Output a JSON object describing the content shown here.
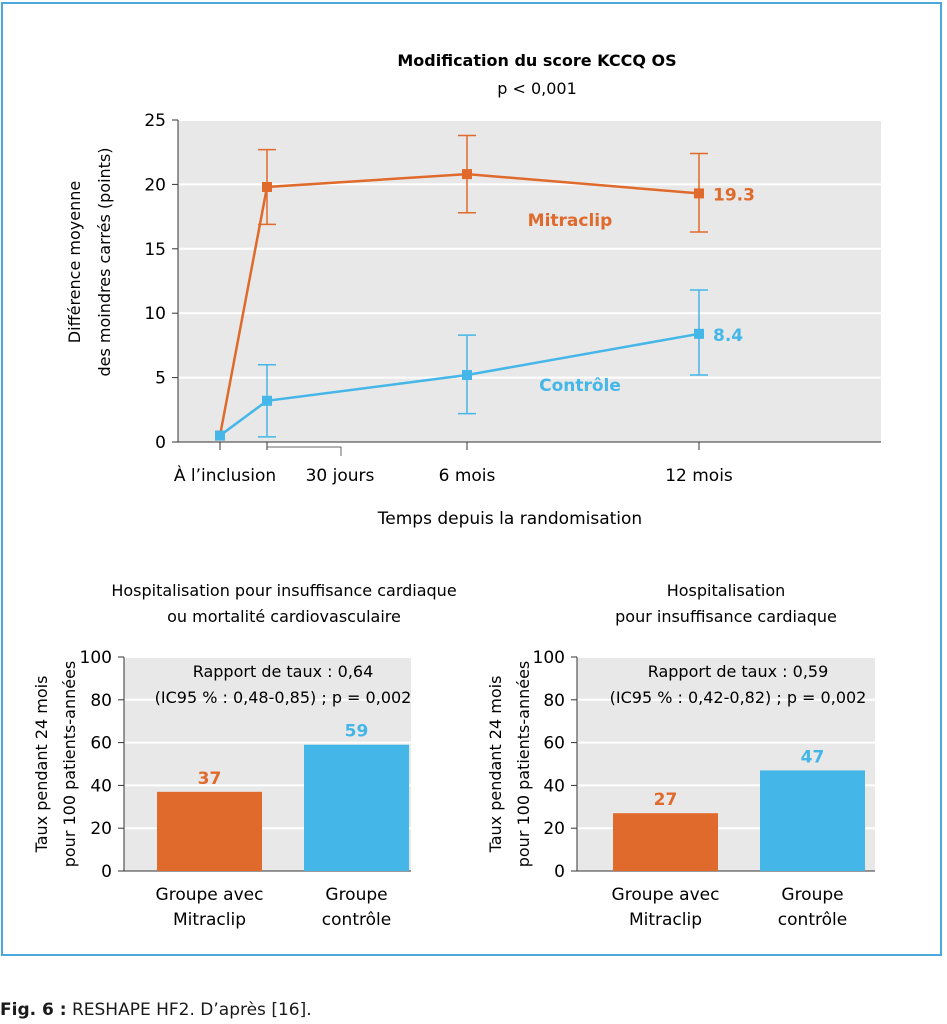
{
  "caption": {
    "label": "Fig. 6 :",
    "text": "RESHAPE HF2. D’après [16]."
  },
  "colors": {
    "mitraclip": "#e06a2c",
    "controle": "#45b6e8",
    "plot_bg": "#e8e8e8",
    "grid": "#ffffff",
    "frame": "#4aa8db"
  },
  "chart_data": [
    {
      "type": "line",
      "title": "Modification du score KCCQ OS",
      "subtitle": "p < 0,001",
      "ylabel_lines": [
        "Différence moyenne",
        "des moindres carrés (points)"
      ],
      "xlabel": "Temps depuis la randomisation",
      "ylim": [
        0,
        25
      ],
      "yticks": [
        "0",
        "5",
        "10",
        "15",
        "20",
        "25"
      ],
      "xticks": [
        "À l’inclusion",
        "30 jours",
        "6 mois",
        "12 mois"
      ],
      "grid": true,
      "series": [
        {
          "name": "Mitraclip",
          "color": "#e06a2c",
          "points": [
            {
              "x": "À l’inclusion",
              "y": 0.5
            },
            {
              "x": "30 jours",
              "y": 19.8,
              "err": [
                16.9,
                22.7
              ]
            },
            {
              "x": "6 mois",
              "y": 20.8,
              "err": [
                17.8,
                23.8
              ]
            },
            {
              "x": "12 mois",
              "y": 19.3,
              "err": [
                16.3,
                22.4
              ],
              "label": "19.3"
            }
          ]
        },
        {
          "name": "Contrôle",
          "color": "#45b6e8",
          "points": [
            {
              "x": "À l’inclusion",
              "y": 0.5
            },
            {
              "x": "30 jours",
              "y": 3.2,
              "err": [
                0.4,
                6.0
              ]
            },
            {
              "x": "6 mois",
              "y": 5.2,
              "err": [
                2.2,
                8.3
              ]
            },
            {
              "x": "12 mois",
              "y": 8.4,
              "err": [
                5.2,
                11.8
              ],
              "label": "8.4"
            }
          ]
        }
      ]
    },
    {
      "type": "bar",
      "title_lines": [
        "Hospitalisation pour insuffisance cardiaque",
        "ou mortalité cardiovasculaire"
      ],
      "ylabel_lines": [
        "Taux pendant 24 mois",
        "pour 100 patients-années"
      ],
      "annotation_lines": [
        "Rapport de taux : 0,64",
        "(IC95 % : 0,48-0,85) ; p = 0,002"
      ],
      "ylim": [
        0,
        100
      ],
      "yticks": [
        "0",
        "20",
        "40",
        "60",
        "80",
        "100"
      ],
      "grid": true,
      "categories": [
        [
          "Groupe avec",
          "Mitraclip"
        ],
        [
          "Groupe",
          "contrôle"
        ]
      ],
      "values": [
        37,
        59
      ],
      "value_labels": [
        "37",
        "59"
      ],
      "bar_colors": [
        "#e06a2c",
        "#45b6e8"
      ]
    },
    {
      "type": "bar",
      "title_lines": [
        "Hospitalisation",
        "pour insuffisance cardiaque"
      ],
      "ylabel_lines": [
        "Taux pendant 24 mois",
        "pour 100 patients-années"
      ],
      "annotation_lines": [
        "Rapport de taux : 0,59",
        "(IC95 % : 0,42-0,82) ; p = 0,002"
      ],
      "ylim": [
        0,
        100
      ],
      "yticks": [
        "0",
        "20",
        "40",
        "60",
        "80",
        "100"
      ],
      "grid": true,
      "categories": [
        [
          "Groupe avec",
          "Mitraclip"
        ],
        [
          "Groupe",
          "contrôle"
        ]
      ],
      "values": [
        27,
        47
      ],
      "value_labels": [
        "27",
        "47"
      ],
      "bar_colors": [
        "#e06a2c",
        "#45b6e8"
      ]
    }
  ]
}
